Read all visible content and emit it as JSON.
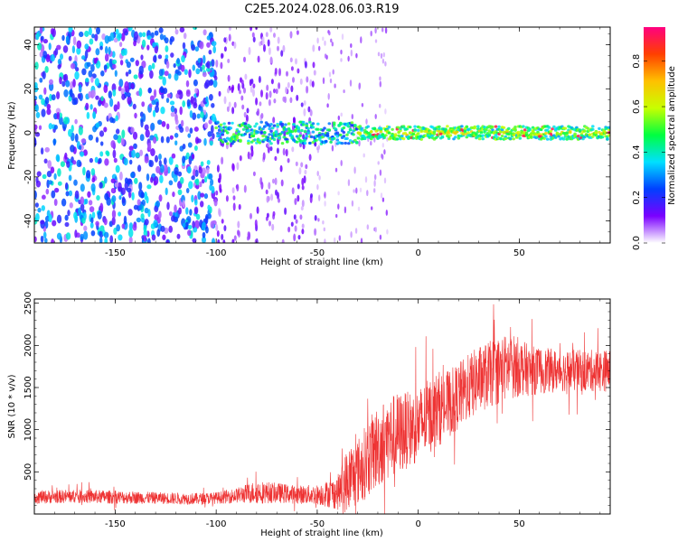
{
  "figure_title": "C2E5.2024.028.06.03.R19",
  "chart_data": [
    {
      "type": "heatmap",
      "title": "",
      "xlabel": "Height of straight line (km)",
      "ylabel": "Frequency (Hz)",
      "xlim": [
        -190,
        95
      ],
      "ylim": [
        -50,
        48
      ],
      "xticks": [
        -150,
        -100,
        -50,
        0,
        50
      ],
      "yticks": [
        -40,
        -20,
        0,
        20,
        40
      ],
      "colorbar": {
        "label": "Normalized spectral amplitude",
        "range": [
          0,
          0.95
        ],
        "ticks": [
          "0.0",
          "0.2",
          "0.4",
          "0.6",
          "0.8"
        ],
        "tick_values": [
          0.0,
          0.2,
          0.4,
          0.6,
          0.8
        ],
        "colormap": [
          "#ffffff",
          "#7a00ff",
          "#0040ff",
          "#00e0ff",
          "#00ff40",
          "#c8ff00",
          "#ffc000",
          "#ff4000",
          "#ff0080"
        ]
      },
      "regions": [
        {
          "x_range": [
            -190,
            -100
          ],
          "description_level": 0.3,
          "spread_hz": 48
        },
        {
          "x_range": [
            -100,
            -50
          ],
          "description_level": 0.12,
          "spread_hz": 48
        },
        {
          "x_range": [
            -100,
            -30
          ],
          "band_level": 0.45,
          "band_halfwidth_hz": 4
        },
        {
          "x_range": [
            -30,
            95
          ],
          "band_level": 0.55,
          "band_halfwidth_hz": 3
        }
      ]
    },
    {
      "type": "line",
      "title": "",
      "xlabel": "Height of straight line (km)",
      "ylabel": "SNR (10 * v/v)",
      "xlim": [
        -190,
        95
      ],
      "ylim": [
        0,
        2550
      ],
      "xticks": [
        -150,
        -100,
        -50,
        0,
        50
      ],
      "yticks": [
        500,
        1000,
        1500,
        2000,
        2500
      ],
      "series": [
        {
          "name": "SNR",
          "color": "#ee3333",
          "x": [
            -190,
            -170,
            -150,
            -130,
            -110,
            -100,
            -90,
            -80,
            -70,
            -60,
            -50,
            -40,
            -35,
            -30,
            -25,
            -20,
            -15,
            -10,
            -5,
            0,
            5,
            10,
            15,
            20,
            25,
            30,
            35,
            40,
            45,
            50,
            55,
            60,
            70,
            80,
            95
          ],
          "y": [
            200,
            210,
            200,
            190,
            180,
            190,
            220,
            260,
            250,
            230,
            230,
            250,
            400,
            500,
            650,
            800,
            900,
            950,
            1000,
            1050,
            1150,
            1250,
            1300,
            1400,
            1500,
            1600,
            1650,
            1700,
            1750,
            1750,
            1700,
            1700,
            1700,
            1700,
            1700
          ],
          "noise": [
            80,
            80,
            80,
            70,
            70,
            70,
            90,
            140,
            120,
            110,
            120,
            200,
            400,
            400,
            450,
            500,
            500,
            500,
            450,
            450,
            450,
            450,
            400,
            400,
            400,
            400,
            400,
            400,
            400,
            350,
            300,
            280,
            250,
            250,
            250
          ]
        }
      ]
    }
  ]
}
